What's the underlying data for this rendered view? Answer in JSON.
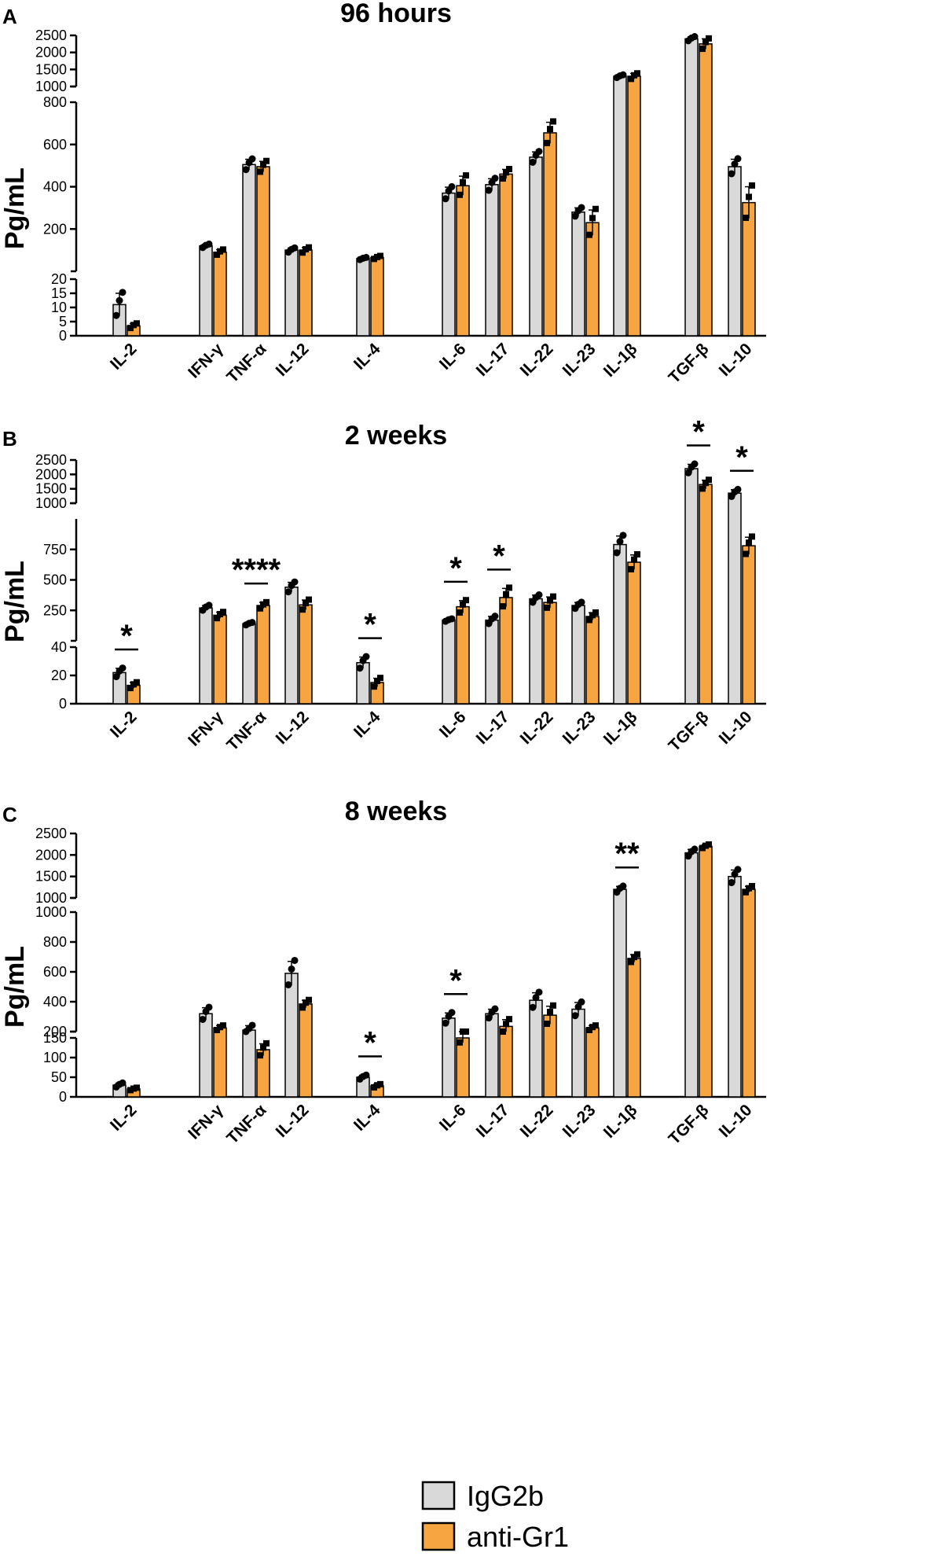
{
  "legend": [
    {
      "name": "IgG2b",
      "color": "#d9d9d9"
    },
    {
      "name": "anti-Gr1",
      "color": "#f7a541"
    }
  ],
  "chart_data": [
    {
      "type": "bar",
      "panel": "A",
      "title": "96 hours",
      "ylabel": "Pg/mL",
      "categories": [
        "IL-2",
        "IFN-γ",
        "TNF-α",
        "IL-12",
        "IL-4",
        "IL-6",
        "IL-17",
        "IL-22",
        "IL-23",
        "IL-1β",
        "TGF-β",
        "IL-10"
      ],
      "series": [
        {
          "name": "IgG2b",
          "values": [
            11,
            120,
            505,
            100,
            60,
            370,
            410,
            540,
            280,
            1300,
            2400,
            495
          ],
          "errors": [
            4,
            8,
            25,
            10,
            5,
            28,
            28,
            25,
            20,
            40,
            60,
            35
          ]
        },
        {
          "name": "anti-Gr1",
          "values": [
            3.5,
            90,
            495,
            100,
            65,
            405,
            460,
            655,
            230,
            1300,
            2250,
            325
          ],
          "errors": [
            0.8,
            12,
            25,
            12,
            7,
            45,
            22,
            50,
            60,
            80,
            150,
            75
          ]
        }
      ],
      "y_axis_segments": [
        {
          "ylim": [
            0,
            20
          ],
          "ticks": [
            0,
            5,
            10,
            15,
            20
          ]
        },
        {
          "ylim": [
            0,
            800
          ],
          "ticks": [
            200,
            400,
            600,
            800
          ]
        },
        {
          "ylim": [
            1000,
            2500
          ],
          "ticks": [
            1000,
            1500,
            2000,
            2500
          ]
        }
      ],
      "significance": []
    },
    {
      "type": "bar",
      "panel": "B",
      "title": "2 weeks",
      "ylabel": "Pg/mL",
      "categories": [
        "IL-2",
        "IFN-γ",
        "TNF-α",
        "IL-12",
        "IL-4",
        "IL-6",
        "IL-17",
        "IL-22",
        "IL-23",
        "IL-1β",
        "TGF-β",
        "IL-10"
      ],
      "series": [
        {
          "name": "IgG2b",
          "values": [
            22,
            270,
            140,
            440,
            29,
            170,
            170,
            345,
            290,
            790,
            2200,
            1350
          ],
          "errors": [
            3,
            20,
            10,
            40,
            4,
            10,
            30,
            30,
            25,
            70,
            150,
            120
          ]
        },
        {
          "name": "anti-Gr1",
          "values": [
            13,
            210,
            290,
            295,
            15,
            280,
            355,
            315,
            200,
            645,
            1650,
            780
          ],
          "errors": [
            2,
            25,
            25,
            40,
            3,
            50,
            75,
            45,
            30,
            60,
            150,
            70
          ]
        }
      ],
      "y_axis_segments": [
        {
          "ylim": [
            0,
            40
          ],
          "ticks": [
            0,
            20,
            40
          ]
        },
        {
          "ylim": [
            0,
            1000
          ],
          "ticks": [
            250,
            500,
            750
          ]
        },
        {
          "ylim": [
            1000,
            2500
          ],
          "ticks": [
            1000,
            1500,
            2000,
            2500
          ]
        }
      ],
      "significance": [
        {
          "category": "IL-2",
          "label": "*"
        },
        {
          "category": "TNF-α",
          "label": "****"
        },
        {
          "category": "IL-4",
          "label": "*"
        },
        {
          "category": "IL-6",
          "label": "*"
        },
        {
          "category": "IL-17",
          "label": "*"
        },
        {
          "category": "TGF-β",
          "label": "*"
        },
        {
          "category": "IL-10",
          "label": "*"
        }
      ]
    },
    {
      "type": "bar",
      "panel": "C",
      "title": "8 weeks",
      "ylabel": "Pg/mL",
      "categories": [
        "IL-2",
        "IFN-γ",
        "TNF-α",
        "IL-12",
        "IL-4",
        "IL-6",
        "IL-17",
        "IL-22",
        "IL-23",
        "IL-1β",
        "TGF-β",
        "IL-10"
      ],
      "series": [
        {
          "name": "IgG2b",
          "values": [
            30,
            320,
            210,
            590,
            50,
            290,
            320,
            410,
            350,
            1200,
            2050,
            1500
          ],
          "errors": [
            5,
            40,
            30,
            80,
            5,
            35,
            30,
            50,
            45,
            70,
            80,
            150
          ]
        },
        {
          "name": "anti-Gr1",
          "values": [
            20,
            225,
            120,
            385,
            28,
            150,
            235,
            310,
            225,
            690,
            2200,
            1200
          ],
          "errors": [
            3,
            15,
            15,
            25,
            4,
            12,
            45,
            60,
            15,
            25,
            40,
            70
          ]
        }
      ],
      "y_axis_segments": [
        {
          "ylim": [
            0,
            150
          ],
          "ticks": [
            0,
            50,
            100,
            150
          ]
        },
        {
          "ylim": [
            200,
            1000
          ],
          "ticks": [
            200,
            400,
            600,
            800,
            1000
          ]
        },
        {
          "ylim": [
            1000,
            2500
          ],
          "ticks": [
            1000,
            1500,
            2000,
            2500
          ]
        }
      ],
      "significance": [
        {
          "category": "IL-4",
          "label": "*"
        },
        {
          "category": "IL-6",
          "label": "*"
        },
        {
          "category": "IL-1β",
          "label": "**"
        }
      ]
    }
  ]
}
